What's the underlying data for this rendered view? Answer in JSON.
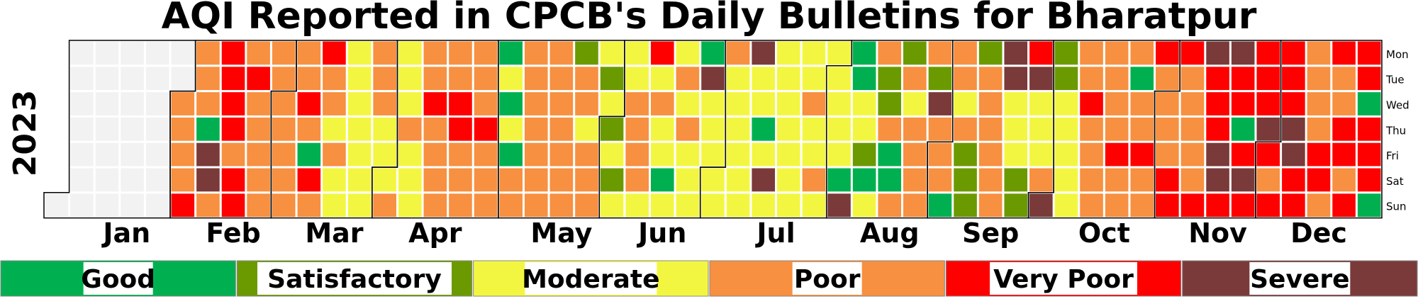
{
  "chart_data": {
    "type": "heatmap",
    "title": "AQI Reported in CPCB's Daily Bulletins for Bharatpur",
    "year_label": "2023",
    "weekdays": [
      "Mon",
      "Tue",
      "Wed",
      "Thu",
      "Fri",
      "Sat",
      "Sun"
    ],
    "months": [
      "Jan",
      "Feb",
      "Mar",
      "Apr",
      "May",
      "Jun",
      "Jul",
      "Aug",
      "Sep",
      "Oct",
      "Nov",
      "Dec"
    ],
    "categories": [
      "Good",
      "Satisfactory",
      "Moderate",
      "Poor",
      "Very Poor",
      "Severe"
    ],
    "category_colors": {
      "Good": "#00b050",
      "Satisfactory": "#6b9a00",
      "Moderate": "#f3f641",
      "Poor": "#f79040",
      "Very Poor": "#ff0000",
      "Severe": "#7a3a3a",
      "No Data": "#f2f2f2"
    },
    "legend_position": "bottom",
    "week_codes": [
      "-------",
      "-------",
      "-------",
      "-------",
      "-------",
      "--NP---",
      "VPPPPPV",
      "PPPGSSP",
      "VVVVPVV",
      "PVPPPPP",
      "PPPPPPP",
      "PPVPGVP",
      "VPPMPMM",
      "MMMMMMM",
      "PPPMMMP",
      "MMMPMMM",
      "PPVPPPP",
      "PPVVPPP",
      "PPPVPPP",
      "GMGMGPP",
      "PPPPPPP",
      "PPPPPPP",
      "PPPMPPP",
      "MMMMMMM",
      "MMPPPPM",
      "VMPMMGM",
      "MPMPMMM",
      "GSMMMMM",
      "PMMMMMM",
      "SMMGMSM",
      "MMMMMMM",
      "MMPMMPM",
      "MMMMMGS",
      "GGMMMGM",
      "PMGPGGP",
      "PPMPPPP",
      "PPSPPPG",
      "PPMPPPV",
      "PPPPPPP",
      "SSMMMSS",
      "VSMMMPS",
      "MMMMMMM",
      "PPVPPPP",
      "PPPPVPP",
      "PGPPVPP",
      "VPPPPVV",
      "VPPPPPV",
      "SVVVSSV",
      "SVVGVSV",
      "VVVSVPV",
      "VVVSSVV",
      "PPPPVVP",
      "VPPVVPV",
      "VVGVVVG",
      "GGSSSSG"
    ]
  }
}
